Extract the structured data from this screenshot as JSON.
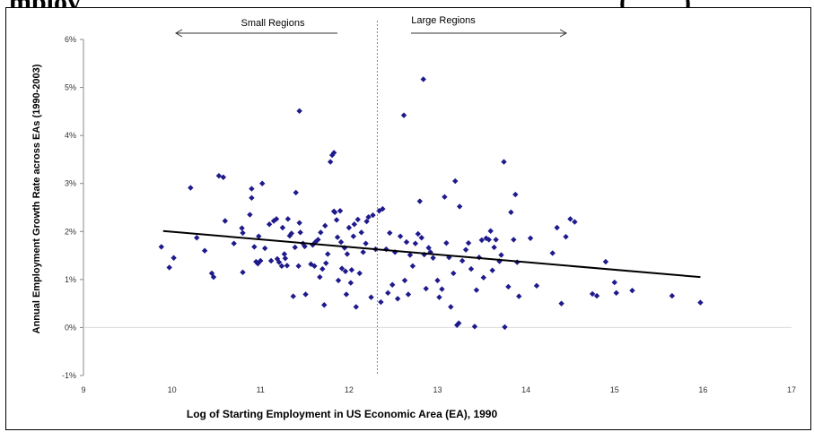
{
  "header": {
    "title_left": "mploy",
    "title_right": "(",
    "title_right_2": ")"
  },
  "chart_data": {
    "type": "scatter",
    "title": "",
    "xlabel": "Log of Starting Employment in US Economic Area (EA), 1990",
    "ylabel": "Annual Employment Growth Rate across EAs  (1990-2003)",
    "xlim": [
      9,
      17
    ],
    "ylim": [
      -0.01,
      0.06
    ],
    "x_ticks": [
      "9",
      "10",
      "11",
      "12",
      "13",
      "14",
      "15",
      "16",
      "17"
    ],
    "y_ticks": [
      "-1%",
      "0%",
      "1%",
      "2%",
      "3%",
      "4%",
      "5%",
      "6%"
    ],
    "grid": "horizontal line at 0%",
    "series_color": "#1f1a8c",
    "annotations": {
      "left": "Small Regions",
      "right": "Large Regions",
      "divider_x": 12.32
    },
    "trendline": {
      "x": [
        9.9,
        15.97
      ],
      "y": [
        0.0201,
        0.0105
      ]
    },
    "points": [
      [
        9.88,
        0.0168
      ],
      [
        9.97,
        0.0125
      ],
      [
        10.02,
        0.0145
      ],
      [
        10.21,
        0.0291
      ],
      [
        10.28,
        0.0187
      ],
      [
        10.37,
        0.016
      ],
      [
        10.45,
        0.0113
      ],
      [
        10.47,
        0.0105
      ],
      [
        10.53,
        0.0316
      ],
      [
        10.58,
        0.0313
      ],
      [
        10.6,
        0.0222
      ],
      [
        10.7,
        0.0175
      ],
      [
        10.79,
        0.0207
      ],
      [
        10.8,
        0.0197
      ],
      [
        10.8,
        0.0115
      ],
      [
        10.88,
        0.0235
      ],
      [
        10.9,
        0.0289
      ],
      [
        10.9,
        0.027
      ],
      [
        10.93,
        0.0168
      ],
      [
        10.95,
        0.0137
      ],
      [
        10.97,
        0.0133
      ],
      [
        10.98,
        0.019
      ],
      [
        11.0,
        0.0139
      ],
      [
        11.02,
        0.03
      ],
      [
        11.05,
        0.0165
      ],
      [
        11.1,
        0.0215
      ],
      [
        11.12,
        0.0139
      ],
      [
        11.15,
        0.0222
      ],
      [
        11.18,
        0.0226
      ],
      [
        11.19,
        0.0143
      ],
      [
        11.21,
        0.0136
      ],
      [
        11.24,
        0.0128
      ],
      [
        11.25,
        0.0208
      ],
      [
        11.27,
        0.0153
      ],
      [
        11.28,
        0.0144
      ],
      [
        11.3,
        0.0129
      ],
      [
        11.31,
        0.0226
      ],
      [
        11.33,
        0.0191
      ],
      [
        11.35,
        0.0196
      ],
      [
        11.37,
        0.0065
      ],
      [
        11.39,
        0.0167
      ],
      [
        11.4,
        0.0281
      ],
      [
        11.43,
        0.0128
      ],
      [
        11.44,
        0.0451
      ],
      [
        11.44,
        0.0218
      ],
      [
        11.45,
        0.0198
      ],
      [
        11.48,
        0.0175
      ],
      [
        11.5,
        0.0169
      ],
      [
        11.51,
        0.0069
      ],
      [
        11.57,
        0.0132
      ],
      [
        11.59,
        0.0172
      ],
      [
        11.61,
        0.0128
      ],
      [
        11.62,
        0.0178
      ],
      [
        11.65,
        0.0183
      ],
      [
        11.67,
        0.0105
      ],
      [
        11.68,
        0.0198
      ],
      [
        11.7,
        0.0122
      ],
      [
        11.72,
        0.0047
      ],
      [
        11.73,
        0.0212
      ],
      [
        11.74,
        0.0134
      ],
      [
        11.76,
        0.0153
      ],
      [
        11.79,
        0.0345
      ],
      [
        11.81,
        0.0359
      ],
      [
        11.83,
        0.0364
      ],
      [
        11.83,
        0.0242
      ],
      [
        11.84,
        0.024
      ],
      [
        11.86,
        0.0224
      ],
      [
        11.87,
        0.0188
      ],
      [
        11.88,
        0.0098
      ],
      [
        11.9,
        0.0243
      ],
      [
        11.91,
        0.0178
      ],
      [
        11.92,
        0.0123
      ],
      [
        11.95,
        0.0166
      ],
      [
        11.96,
        0.0117
      ],
      [
        11.97,
        0.0069
      ],
      [
        11.98,
        0.0153
      ],
      [
        12.0,
        0.0208
      ],
      [
        12.02,
        0.0093
      ],
      [
        12.03,
        0.012
      ],
      [
        12.05,
        0.019
      ],
      [
        12.06,
        0.0215
      ],
      [
        12.08,
        0.0043
      ],
      [
        12.1,
        0.0225
      ],
      [
        12.12,
        0.0113
      ],
      [
        12.14,
        0.0198
      ],
      [
        12.16,
        0.0157
      ],
      [
        12.19,
        0.0175
      ],
      [
        12.2,
        0.0221
      ],
      [
        12.22,
        0.023
      ],
      [
        12.25,
        0.0063
      ],
      [
        12.27,
        0.0234
      ],
      [
        12.3,
        0.0163
      ],
      [
        12.34,
        0.0243
      ],
      [
        12.36,
        0.0053
      ],
      [
        12.38,
        0.0247
      ],
      [
        12.42,
        0.0163
      ],
      [
        12.44,
        0.0072
      ],
      [
        12.46,
        0.0197
      ],
      [
        12.49,
        0.0089
      ],
      [
        12.52,
        0.0157
      ],
      [
        12.55,
        0.006
      ],
      [
        12.58,
        0.019
      ],
      [
        12.62,
        0.0442
      ],
      [
        12.63,
        0.0098
      ],
      [
        12.65,
        0.0178
      ],
      [
        12.67,
        0.0069
      ],
      [
        12.69,
        0.0151
      ],
      [
        12.72,
        0.0128
      ],
      [
        12.75,
        0.0175
      ],
      [
        12.78,
        0.0195
      ],
      [
        12.8,
        0.0263
      ],
      [
        12.82,
        0.0187
      ],
      [
        12.84,
        0.0517
      ],
      [
        12.85,
        0.0152
      ],
      [
        12.87,
        0.0081
      ],
      [
        12.9,
        0.0166
      ],
      [
        12.92,
        0.0157
      ],
      [
        12.95,
        0.0145
      ],
      [
        13.0,
        0.0098
      ],
      [
        13.02,
        0.0063
      ],
      [
        13.05,
        0.008
      ],
      [
        13.08,
        0.0272
      ],
      [
        13.1,
        0.0176
      ],
      [
        13.13,
        0.0146
      ],
      [
        13.15,
        0.0043
      ],
      [
        13.18,
        0.0113
      ],
      [
        13.2,
        0.0305
      ],
      [
        13.22,
        0.0005
      ],
      [
        13.24,
        0.0009
      ],
      [
        13.25,
        0.0252
      ],
      [
        13.28,
        0.0139
      ],
      [
        13.32,
        0.0162
      ],
      [
        13.35,
        0.0176
      ],
      [
        13.38,
        0.0122
      ],
      [
        13.42,
        0.0002
      ],
      [
        13.44,
        0.0078
      ],
      [
        13.47,
        0.0146
      ],
      [
        13.5,
        0.0182
      ],
      [
        13.52,
        0.0104
      ],
      [
        13.55,
        0.0186
      ],
      [
        13.58,
        0.0183
      ],
      [
        13.6,
        0.0201
      ],
      [
        13.62,
        0.0119
      ],
      [
        13.64,
        0.0167
      ],
      [
        13.66,
        0.0183
      ],
      [
        13.7,
        0.0138
      ],
      [
        13.72,
        0.0151
      ],
      [
        13.75,
        0.0345
      ],
      [
        13.76,
        0.0001
      ],
      [
        13.8,
        0.0085
      ],
      [
        13.83,
        0.024
      ],
      [
        13.86,
        0.0183
      ],
      [
        13.88,
        0.0277
      ],
      [
        13.9,
        0.0136
      ],
      [
        13.92,
        0.0065
      ],
      [
        14.05,
        0.0186
      ],
      [
        14.12,
        0.0087
      ],
      [
        14.3,
        0.0155
      ],
      [
        14.35,
        0.0208
      ],
      [
        14.4,
        0.005
      ],
      [
        14.45,
        0.0189
      ],
      [
        14.5,
        0.0226
      ],
      [
        14.55,
        0.022
      ],
      [
        14.75,
        0.007
      ],
      [
        14.8,
        0.0066
      ],
      [
        14.9,
        0.0137
      ],
      [
        15.0,
        0.0094
      ],
      [
        15.02,
        0.0072
      ],
      [
        15.2,
        0.0077
      ],
      [
        15.65,
        0.0066
      ],
      [
        15.97,
        0.0052
      ]
    ]
  }
}
